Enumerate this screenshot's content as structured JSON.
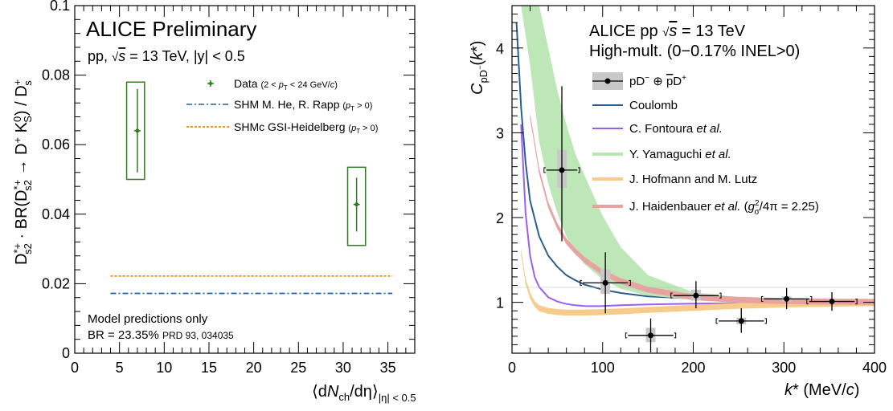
{
  "chart_data": [
    {
      "type": "scatter",
      "title": "ALICE Preliminary",
      "subtitle": "pp, √s = 13 TeV, |y| < 0.5",
      "xlabel": "⟨dNch/dη⟩|η| < 0.5",
      "ylabel": "D*+s2 · BR(D*+s2 → D+K0S) / D+s",
      "xlim": [
        0,
        38
      ],
      "ylim": [
        0,
        0.1
      ],
      "xticks": [
        "0",
        "5",
        "10",
        "15",
        "20",
        "25",
        "30",
        "35"
      ],
      "yticks": [
        "0",
        "0.02",
        "0.04",
        "0.06",
        "0.08",
        "0.1"
      ],
      "legend_position": "top-right",
      "legend": [
        {
          "label": "Data (2 < pT < 24 GeV/c)",
          "style": "marker",
          "color": "#2e7d1e"
        },
        {
          "label": "SHM M. He, R. Rapp (pT > 0)",
          "style": "dashdot",
          "color": "#1f63a8"
        },
        {
          "label": "SHMc GSI-Heidelberg (pT > 0)",
          "style": "dotted",
          "color": "#f08c00"
        }
      ],
      "points": [
        {
          "x": 7.0,
          "y": 0.064,
          "stat_low": 0.052,
          "stat_high": 0.076,
          "sys_low": 0.05,
          "sys_high": 0.078,
          "sys_xlow": 5.8,
          "sys_xhigh": 7.8
        },
        {
          "x": 31.5,
          "y": 0.0428,
          "stat_low": 0.035,
          "stat_high": 0.0505,
          "sys_low": 0.031,
          "sys_high": 0.0535,
          "sys_xlow": 30.5,
          "sys_xhigh": 32.5
        }
      ],
      "model_lines": [
        {
          "name": "SHMc GSI-Heidelberg",
          "y": 0.0222,
          "x_range": [
            4,
            35.5
          ],
          "color": "#f08c00"
        },
        {
          "name": "SHM M. He, R. Rapp",
          "y": 0.0172,
          "x_range": [
            4,
            35.5
          ],
          "color": "#1f63a8"
        }
      ],
      "notes": [
        "Model predictions only",
        "BR = 23.35%",
        "PRD 93, 034035"
      ]
    },
    {
      "type": "scatter",
      "title": "ALICE pp  √s = 13 TeV",
      "subtitle": "High-mult. (0−0.17% INEL>0)",
      "xlabel": "k* (MeV/c)",
      "ylabel": "CpD−(k*)",
      "xlim": [
        0,
        400
      ],
      "ylim": [
        0.4,
        4.5
      ],
      "xticks": [
        "0",
        "100",
        "200",
        "300",
        "400"
      ],
      "yticks": [
        "1",
        "2",
        "3",
        "4"
      ],
      "legend_position": "top-right",
      "legend": [
        {
          "label": "pD− ⊕ p̄D+",
          "color": "#000000"
        },
        {
          "label": "Coulomb",
          "color": "#2b5f8e"
        },
        {
          "label": "C. Fontoura et al.",
          "color": "#9b5ff0"
        },
        {
          "label": "Y. Yamaguchi et al.",
          "color": "#b9e6b2"
        },
        {
          "label": "J. Hofmann and M. Lutz",
          "color": "#f7cb8a"
        },
        {
          "label": "J. Haidenbauer et al. (g²σ/4π = 2.25)",
          "color": "#e8a3a0"
        }
      ],
      "points": [
        {
          "x": 55,
          "y": 2.56,
          "xerr": 17,
          "stat_low": 1.72,
          "stat_high": 3.55,
          "sys_low": 2.35,
          "sys_high": 2.8
        },
        {
          "x": 103,
          "y": 1.23,
          "xerr": 25,
          "stat_low": 0.87,
          "stat_high": 1.59,
          "sys_low": 1.1,
          "sys_high": 1.39
        },
        {
          "x": 153,
          "y": 0.61,
          "xerr": 25,
          "stat_low": 0.41,
          "stat_high": 0.81,
          "sys_low": 0.53,
          "sys_high": 0.7
        },
        {
          "x": 203,
          "y": 1.08,
          "xerr": 25,
          "stat_low": 0.93,
          "stat_high": 1.25,
          "sys_low": 1.02,
          "sys_high": 1.15
        },
        {
          "x": 253,
          "y": 0.78,
          "xerr": 25,
          "stat_low": 0.64,
          "stat_high": 0.93,
          "sys_low": 0.74,
          "sys_high": 0.82
        },
        {
          "x": 303,
          "y": 1.04,
          "xerr": 25,
          "stat_low": 0.92,
          "stat_high": 1.17,
          "sys_low": 1.01,
          "sys_high": 1.07
        },
        {
          "x": 353,
          "y": 1.01,
          "xerr": 25,
          "stat_low": 0.9,
          "stat_high": 1.12,
          "sys_low": 0.99,
          "sys_high": 1.03
        }
      ],
      "curves": [
        {
          "name": "Coulomb",
          "x": [
            5,
            10,
            15,
            20,
            30,
            40,
            50,
            60,
            70,
            80,
            100,
            120,
            150,
            200,
            250,
            300,
            350,
            400
          ],
          "y": [
            4.3,
            3.3,
            2.65,
            2.2,
            1.78,
            1.55,
            1.42,
            1.32,
            1.26,
            1.21,
            1.15,
            1.11,
            1.07,
            1.045,
            1.03,
            1.022,
            1.016,
            1.012
          ]
        },
        {
          "name": "C. Fontoura et al.",
          "x": [
            10,
            15,
            20,
            25,
            30,
            40,
            50,
            60,
            70,
            80,
            90,
            100,
            120,
            150,
            200,
            300,
            400
          ],
          "y": [
            3.1,
            2.05,
            1.55,
            1.3,
            1.18,
            1.06,
            1.01,
            0.98,
            0.965,
            0.957,
            0.955,
            0.957,
            0.965,
            0.975,
            0.985,
            0.995,
            1.0
          ]
        },
        {
          "name": "J. Hofmann and M. Lutz",
          "x": [
            10,
            15,
            20,
            25,
            30,
            40,
            50,
            60,
            70,
            80,
            90,
            100,
            120,
            150,
            200,
            250,
            300,
            400
          ],
          "y": [
            1.6,
            1.25,
            1.08,
            0.98,
            0.93,
            0.9,
            0.885,
            0.88,
            0.88,
            0.88,
            0.882,
            0.885,
            0.893,
            0.91,
            0.935,
            0.96,
            0.975,
            0.99
          ],
          "band": 0.035
        },
        {
          "name": "Y. Yamaguchi et al.",
          "x": [
            10,
            20,
            30,
            40,
            50,
            60,
            70,
            80,
            100,
            120,
            150,
            200,
            250,
            300,
            350,
            400
          ],
          "y_low": [
            4.5,
            3.8,
            2.9,
            2.4,
            2.05,
            1.78,
            1.58,
            1.45,
            1.27,
            1.16,
            1.08,
            1.03,
            1.015,
            1.008,
            1.005,
            1.003
          ],
          "y_high": [
            4.5,
            4.5,
            4.5,
            4.0,
            3.5,
            3.1,
            2.75,
            2.5,
            2.02,
            1.65,
            1.32,
            1.12,
            1.06,
            1.035,
            1.022,
            1.015
          ]
        },
        {
          "name": "J. Haidenbauer et al. (g²σ/4π = 2.25)",
          "x": [
            20,
            30,
            40,
            50,
            60,
            70,
            80,
            100,
            120,
            150,
            200,
            250,
            300,
            350,
            400
          ],
          "y": [
            3.2,
            2.55,
            2.15,
            1.9,
            1.72,
            1.6,
            1.5,
            1.35,
            1.25,
            1.15,
            1.06,
            1.03,
            1.015,
            1.008,
            1.005
          ],
          "band": 0.035
        }
      ]
    }
  ]
}
